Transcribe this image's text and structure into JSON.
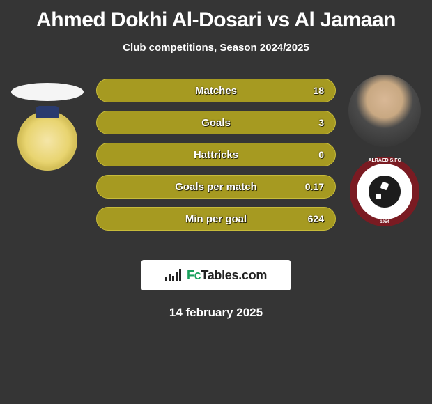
{
  "title": "Ahmed Dokhi Al-Dosari vs Al Jamaan",
  "subtitle": "Club competitions, Season 2024/2025",
  "date": "14 february 2025",
  "brand": {
    "prefix": "Fc",
    "suffix": "Tables.com"
  },
  "pill_style": {
    "fill": "#a69a21",
    "border": "#c7bb3a"
  },
  "stats": [
    {
      "label": "Matches",
      "right_value": "18"
    },
    {
      "label": "Goals",
      "right_value": "3"
    },
    {
      "label": "Hattricks",
      "right_value": "0"
    },
    {
      "label": "Goals per match",
      "right_value": "0.17"
    },
    {
      "label": "Min per goal",
      "right_value": "624"
    }
  ],
  "left": {
    "player_avatar_name": "player-1-avatar",
    "club_badge_name": "club-1-badge"
  },
  "right": {
    "player_avatar_name": "player-2-avatar",
    "club_badge_name": "club-2-badge",
    "club_top_text": "ALRAED S.FC",
    "club_bottom_text": "1954"
  }
}
